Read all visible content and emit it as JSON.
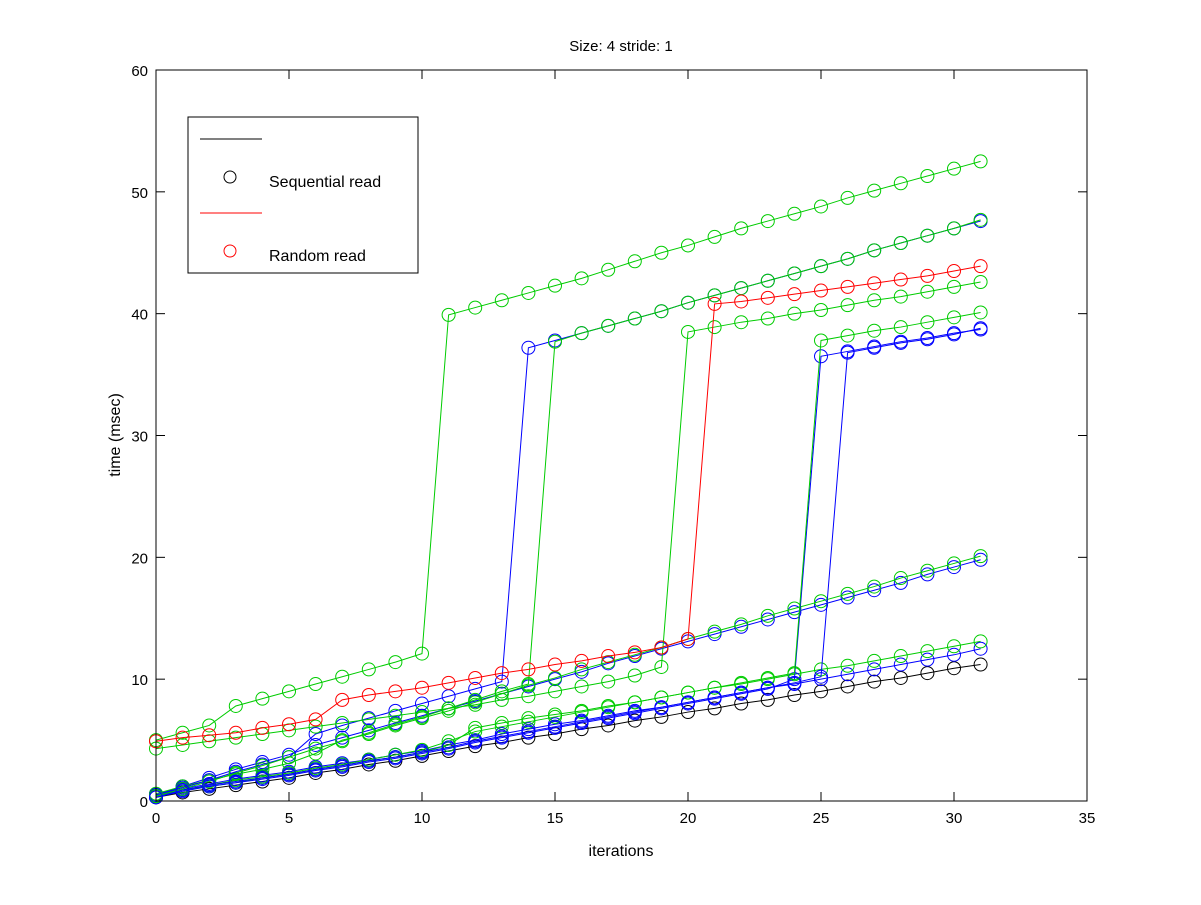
{
  "chart_data": {
    "type": "line",
    "title": "Size: 4 stride: 1",
    "xlabel": "iterations",
    "ylabel": "time (msec)",
    "xlim": [
      0,
      35
    ],
    "ylim": [
      0,
      60
    ],
    "xticks": [
      0,
      5,
      10,
      15,
      20,
      25,
      30,
      35
    ],
    "yticks": [
      0,
      10,
      20,
      30,
      40,
      50,
      60
    ],
    "grid": false,
    "marker": "circle",
    "legend": {
      "placement": "top-left",
      "entries": [
        {
          "label": "",
          "color": "#000000",
          "kind": "line"
        },
        {
          "label": "Sequential read",
          "color": "#000000",
          "kind": "marker"
        },
        {
          "label": "",
          "color": "#ff0000",
          "kind": "line"
        },
        {
          "label": "Random read",
          "color": "#ff0000",
          "kind": "marker"
        }
      ]
    },
    "x": [
      0,
      1,
      2,
      3,
      4,
      5,
      6,
      7,
      8,
      9,
      10,
      11,
      12,
      13,
      14,
      15,
      16,
      17,
      18,
      19,
      20,
      21,
      22,
      23,
      24,
      25,
      26,
      27,
      28,
      29,
      30,
      31
    ],
    "series": [
      {
        "color": "#000000",
        "values": [
          0.3,
          0.7,
          1.0,
          1.3,
          1.6,
          1.9,
          2.3,
          2.6,
          3.0,
          3.3,
          3.7,
          4.1,
          4.5,
          4.8,
          5.2,
          5.5,
          5.9,
          6.2,
          6.6,
          6.9,
          7.3,
          7.6,
          8.0,
          8.3,
          8.7,
          9.0,
          9.4,
          9.8,
          10.1,
          10.5,
          10.9,
          11.2
        ]
      },
      {
        "color": "#0000ff",
        "values": [
          0.5,
          1.0,
          1.4,
          1.8,
          2.1,
          2.4,
          2.8,
          3.1,
          3.4,
          3.8,
          4.1,
          4.6,
          5.0,
          5.5,
          5.9,
          6.3,
          6.6,
          7.0,
          7.4,
          7.7,
          8.1,
          8.5,
          8.9,
          9.3,
          9.6,
          10.0,
          10.4,
          10.8,
          11.2,
          11.6,
          12.0,
          12.5
        ]
      },
      {
        "color": "#00cc00",
        "values": [
          0.4,
          0.9,
          1.2,
          1.5,
          1.9,
          2.2,
          2.6,
          2.9,
          3.3,
          3.6,
          4.0,
          4.6,
          6.0,
          6.4,
          6.8,
          7.1,
          7.4,
          7.8,
          8.1,
          8.5,
          8.9,
          9.3,
          9.6,
          10.0,
          10.4,
          10.8,
          11.1,
          11.5,
          11.9,
          12.3,
          12.7,
          13.1
        ]
      },
      {
        "color": "#0000ff",
        "values": [
          0.5,
          1.2,
          1.9,
          2.6,
          3.2,
          3.8,
          4.6,
          5.2,
          5.8,
          6.4,
          7.0,
          7.6,
          8.2,
          8.8,
          9.4,
          10.0,
          10.6,
          11.3,
          11.9,
          12.5,
          13.1,
          13.7,
          14.3,
          14.9,
          15.5,
          16.1,
          16.7,
          17.3,
          17.9,
          18.6,
          19.2,
          19.8
        ]
      },
      {
        "color": "#00cc00",
        "values": [
          0.6,
          1.2,
          1.7,
          2.2,
          2.6,
          3.1,
          3.9,
          5.0,
          5.5,
          6.2,
          6.8,
          7.4,
          8.1,
          8.8,
          9.5,
          10.1,
          10.8,
          11.4,
          12.0,
          12.6,
          13.3,
          13.9,
          14.5,
          15.2,
          15.8,
          16.4,
          17.0,
          17.6,
          18.3,
          18.9,
          19.5,
          20.1
        ]
      },
      {
        "color": "#0000ff",
        "values": [
          0.5,
          1.1,
          1.7,
          2.4,
          3.0,
          3.6,
          5.5,
          6.2,
          6.8,
          7.4,
          8.0,
          8.6,
          9.2,
          9.8,
          37.2,
          37.8,
          38.4,
          39.0,
          39.6,
          40.2,
          40.9,
          41.5,
          42.1,
          42.7,
          43.3,
          43.9,
          44.5,
          45.2,
          45.8,
          46.4,
          47.0,
          47.6
        ]
      },
      {
        "color": "#00cc00",
        "values": [
          0.4,
          1.0,
          1.6,
          2.3,
          2.9,
          3.6,
          4.3,
          4.9,
          5.6,
          6.3,
          6.9,
          7.6,
          8.3,
          9.0,
          9.6,
          37.7,
          38.4,
          39.0,
          39.6,
          40.2,
          40.9,
          41.5,
          42.1,
          42.7,
          43.3,
          43.9,
          44.5,
          45.2,
          45.8,
          46.4,
          47.0,
          47.7
        ]
      },
      {
        "color": "#0000ff",
        "values": [
          0.3,
          0.8,
          1.2,
          1.5,
          1.8,
          2.1,
          2.5,
          2.8,
          3.2,
          3.5,
          3.9,
          4.3,
          4.8,
          5.2,
          5.6,
          6.0,
          6.4,
          6.8,
          7.2,
          7.6,
          8.0,
          8.4,
          8.8,
          9.2,
          10.0,
          36.5,
          36.9,
          37.3,
          37.7,
          38.0,
          38.4,
          38.7
        ]
      },
      {
        "color": "#00cc00",
        "values": [
          0.4,
          0.9,
          1.3,
          1.7,
          2.0,
          2.3,
          2.7,
          3.0,
          3.4,
          3.8,
          4.2,
          4.9,
          5.7,
          6.1,
          6.5,
          6.9,
          7.3,
          7.7,
          8.1,
          8.5,
          8.9,
          9.3,
          9.7,
          10.1,
          10.5,
          37.8,
          38.2,
          38.6,
          38.9,
          39.3,
          39.7,
          40.1
        ]
      },
      {
        "color": "#0000ff",
        "values": [
          0.3,
          0.9,
          1.3,
          1.6,
          1.9,
          2.2,
          2.6,
          2.9,
          3.3,
          3.6,
          4.0,
          4.4,
          4.9,
          5.3,
          5.7,
          6.1,
          6.5,
          6.9,
          7.3,
          7.7,
          8.1,
          8.5,
          8.9,
          9.3,
          9.7,
          10.2,
          36.8,
          37.2,
          37.6,
          37.9,
          38.3,
          38.8
        ]
      },
      {
        "color": "#00cc00",
        "values": [
          4.3,
          4.6,
          4.9,
          5.2,
          5.5,
          5.8,
          6.1,
          6.4,
          6.7,
          7.0,
          7.3,
          7.6,
          7.9,
          8.3,
          8.6,
          9.0,
          9.4,
          9.8,
          10.3,
          11.0,
          38.5,
          38.9,
          39.3,
          39.6,
          40.0,
          40.3,
          40.7,
          41.1,
          41.4,
          41.8,
          42.2,
          42.6
        ]
      },
      {
        "color": "#00cc00",
        "values": [
          5.0,
          5.6,
          6.2,
          7.8,
          8.4,
          9.0,
          9.6,
          10.2,
          10.8,
          11.4,
          12.1,
          39.9,
          40.5,
          41.1,
          41.7,
          42.3,
          42.9,
          43.6,
          44.3,
          45.0,
          45.6,
          46.3,
          47.0,
          47.6,
          48.2,
          48.8,
          49.5,
          50.1,
          50.7,
          51.3,
          51.9,
          52.5
        ]
      },
      {
        "color": "#ff0000",
        "values": [
          4.9,
          5.2,
          5.4,
          5.6,
          6.0,
          6.3,
          6.7,
          8.3,
          8.7,
          9.0,
          9.3,
          9.7,
          10.1,
          10.5,
          10.8,
          11.2,
          11.5,
          11.9,
          12.2,
          12.6,
          13.3,
          40.8,
          41.0,
          41.3,
          41.6,
          41.9,
          42.2,
          42.5,
          42.8,
          43.1,
          43.5,
          43.9
        ]
      }
    ]
  }
}
